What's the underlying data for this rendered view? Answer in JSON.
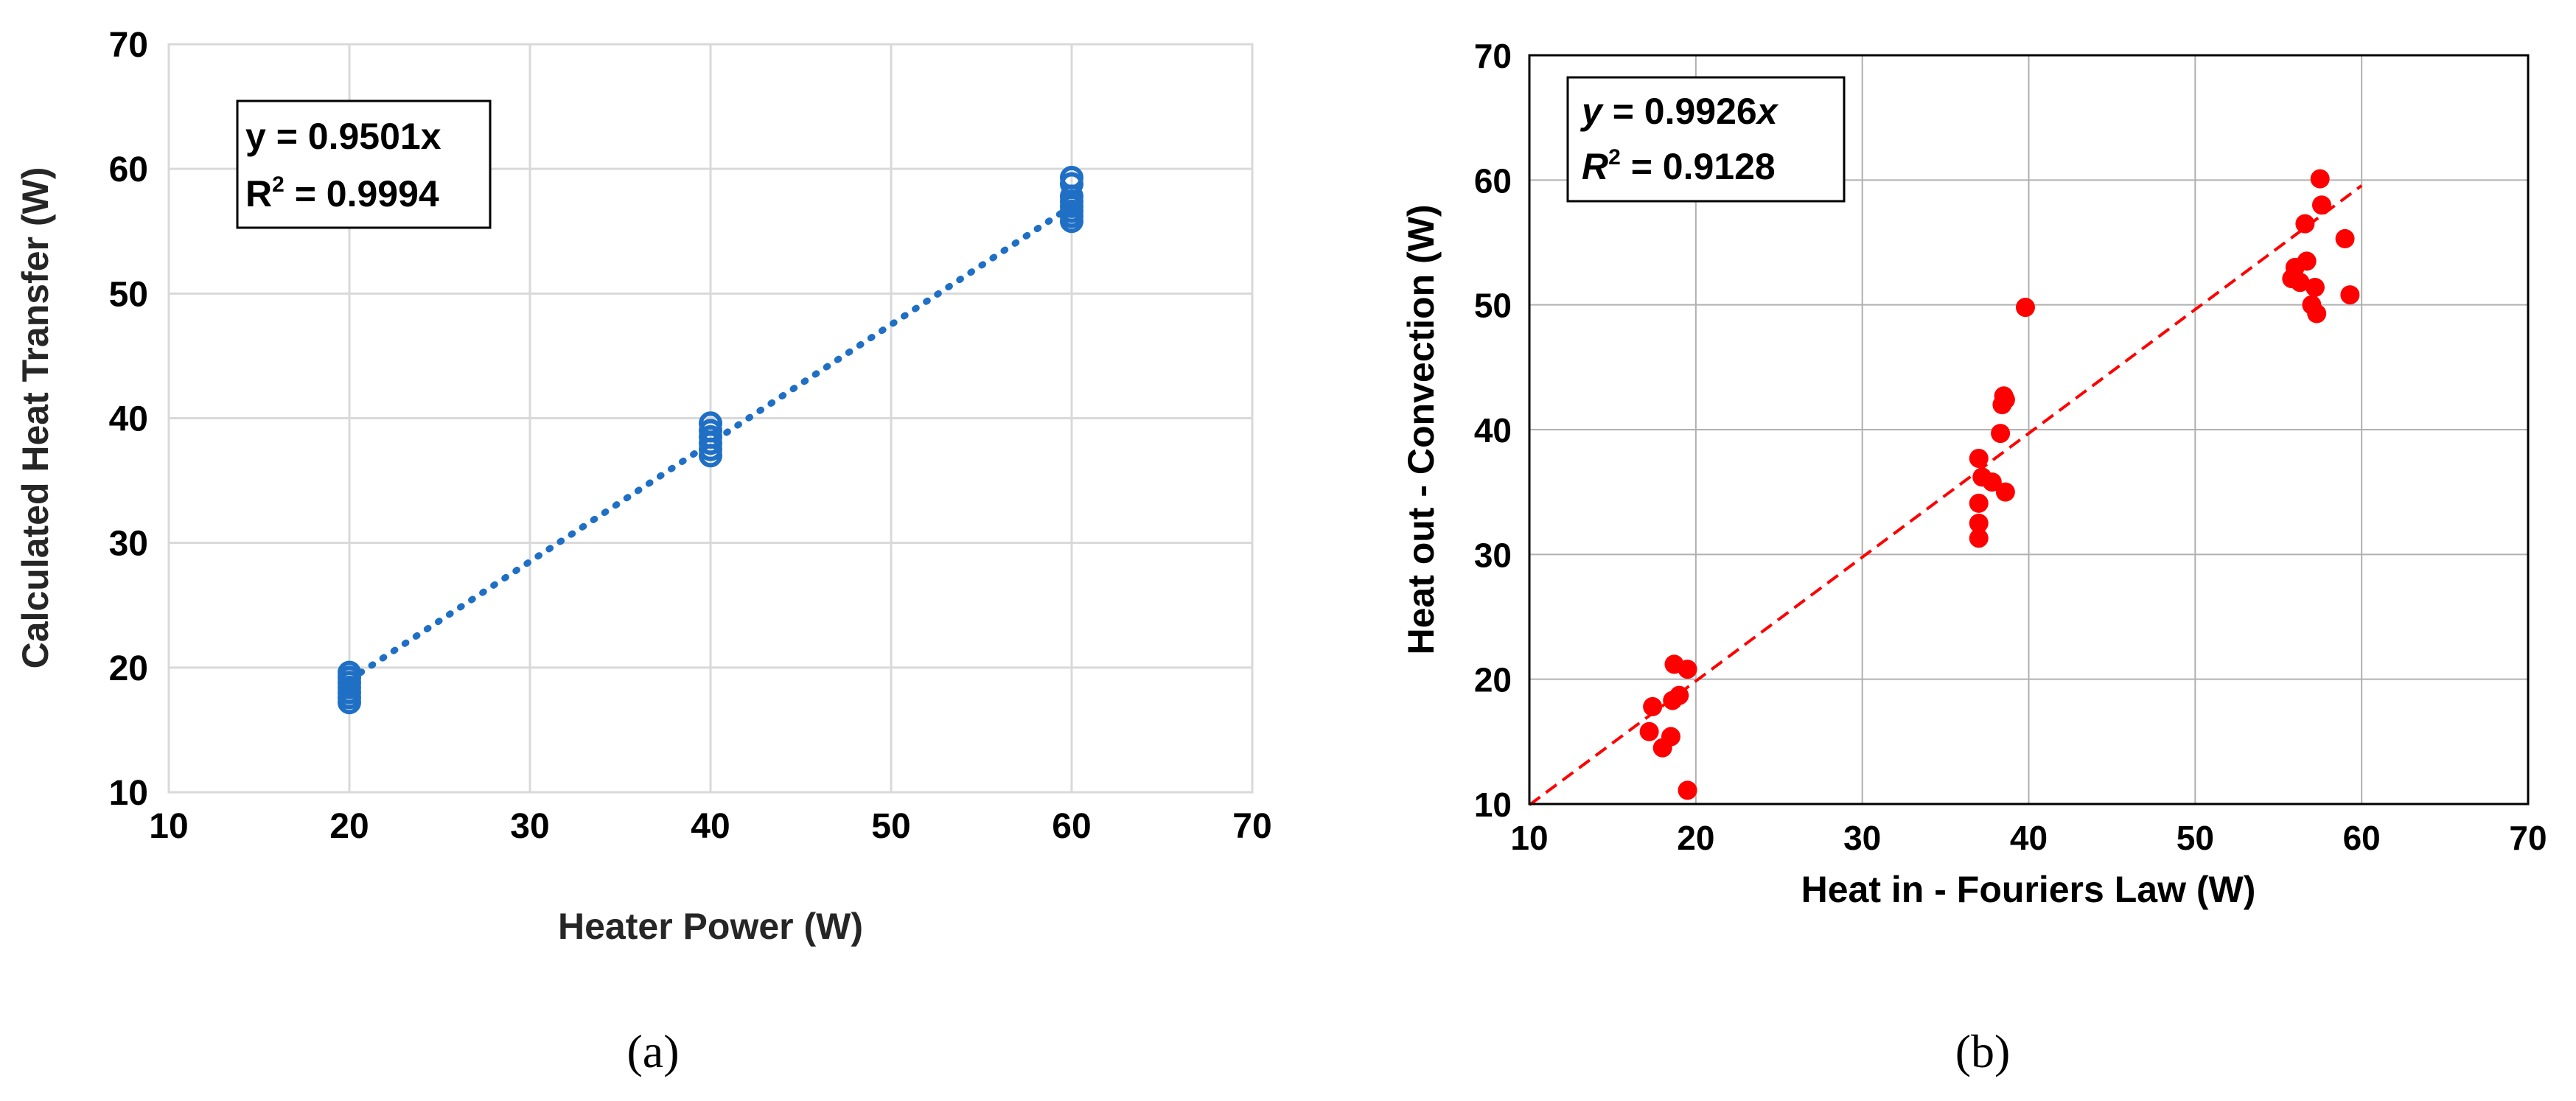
{
  "chart_data": [
    {
      "type": "scatter",
      "panel_label": "(a)",
      "xlabel": "Heater Power (W)",
      "ylabel": "Calculated Heat Transfer (W)",
      "xlim": [
        10,
        70
      ],
      "ylim": [
        10,
        70
      ],
      "xticks": [
        10,
        20,
        30,
        40,
        50,
        60,
        70
      ],
      "yticks": [
        10,
        20,
        30,
        40,
        50,
        60,
        70
      ],
      "grid": true,
      "series": [
        {
          "name": "Calculated Heat Transfer",
          "marker": "open-circle",
          "color": "#1f6fc5",
          "x": [
            20,
            20,
            20,
            20,
            20,
            20,
            20,
            40,
            40,
            40,
            40,
            40,
            40,
            60,
            60,
            60,
            60,
            60,
            60,
            60,
            60
          ],
          "y": [
            17.2,
            17.6,
            18.0,
            18.4,
            18.8,
            19.2,
            19.6,
            37.0,
            37.5,
            38.0,
            38.5,
            39.0,
            39.6,
            55.8,
            56.2,
            56.6,
            57.0,
            57.4,
            57.8,
            58.8,
            59.3
          ]
        }
      ],
      "trendline": {
        "slope": 0.9501,
        "x_range": [
          20,
          60
        ],
        "style": "dotted",
        "color": "#1f6fc5",
        "equation": "y = 0.9501x",
        "r2_prefix": "R",
        "r2_exp": "2",
        "r2_value": " = 0.9994"
      }
    },
    {
      "type": "scatter",
      "panel_label": "(b)",
      "xlabel": "Heat in - Fouriers Law (W)",
      "ylabel": "Heat out - Convection (W)",
      "xlim": [
        10,
        70
      ],
      "ylim": [
        10,
        70
      ],
      "xticks": [
        10,
        20,
        30,
        40,
        50,
        60,
        70
      ],
      "yticks": [
        10,
        20,
        30,
        40,
        50,
        60,
        70
      ],
      "grid": true,
      "series": [
        {
          "name": "Heat out - Convection",
          "marker": "filled-circle",
          "color": "#ff0000",
          "x": [
            17.2,
            17.4,
            18.0,
            18.5,
            18.6,
            18.7,
            19.0,
            19.5,
            19.5,
            37.0,
            37.0,
            37.0,
            37.0,
            37.2,
            37.8,
            38.3,
            38.4,
            38.5,
            38.6,
            38.6,
            39.8,
            55.8,
            56.0,
            56.3,
            56.6,
            56.7,
            57.0,
            57.2,
            57.3,
            57.5,
            57.6,
            59.0,
            59.3
          ],
          "y": [
            15.8,
            17.8,
            14.5,
            15.4,
            18.3,
            21.2,
            18.7,
            20.8,
            11.1,
            31.3,
            32.5,
            34.1,
            37.7,
            36.2,
            35.8,
            39.7,
            42.0,
            42.7,
            35.0,
            42.4,
            49.8,
            52.1,
            53.0,
            51.8,
            56.5,
            53.5,
            50.0,
            51.4,
            49.3,
            60.1,
            58.0,
            55.3,
            50.8
          ]
        }
      ],
      "trendline": {
        "slope": 0.9926,
        "x_range": [
          10,
          60
        ],
        "style": "dashed",
        "color": "#ff0000",
        "equation_pre": "y",
        "equation_post": " = 0.9926",
        "equation_var": "x",
        "r2_prefix": "R",
        "r2_exp": "2",
        "r2_value": " = 0.9128"
      }
    }
  ]
}
